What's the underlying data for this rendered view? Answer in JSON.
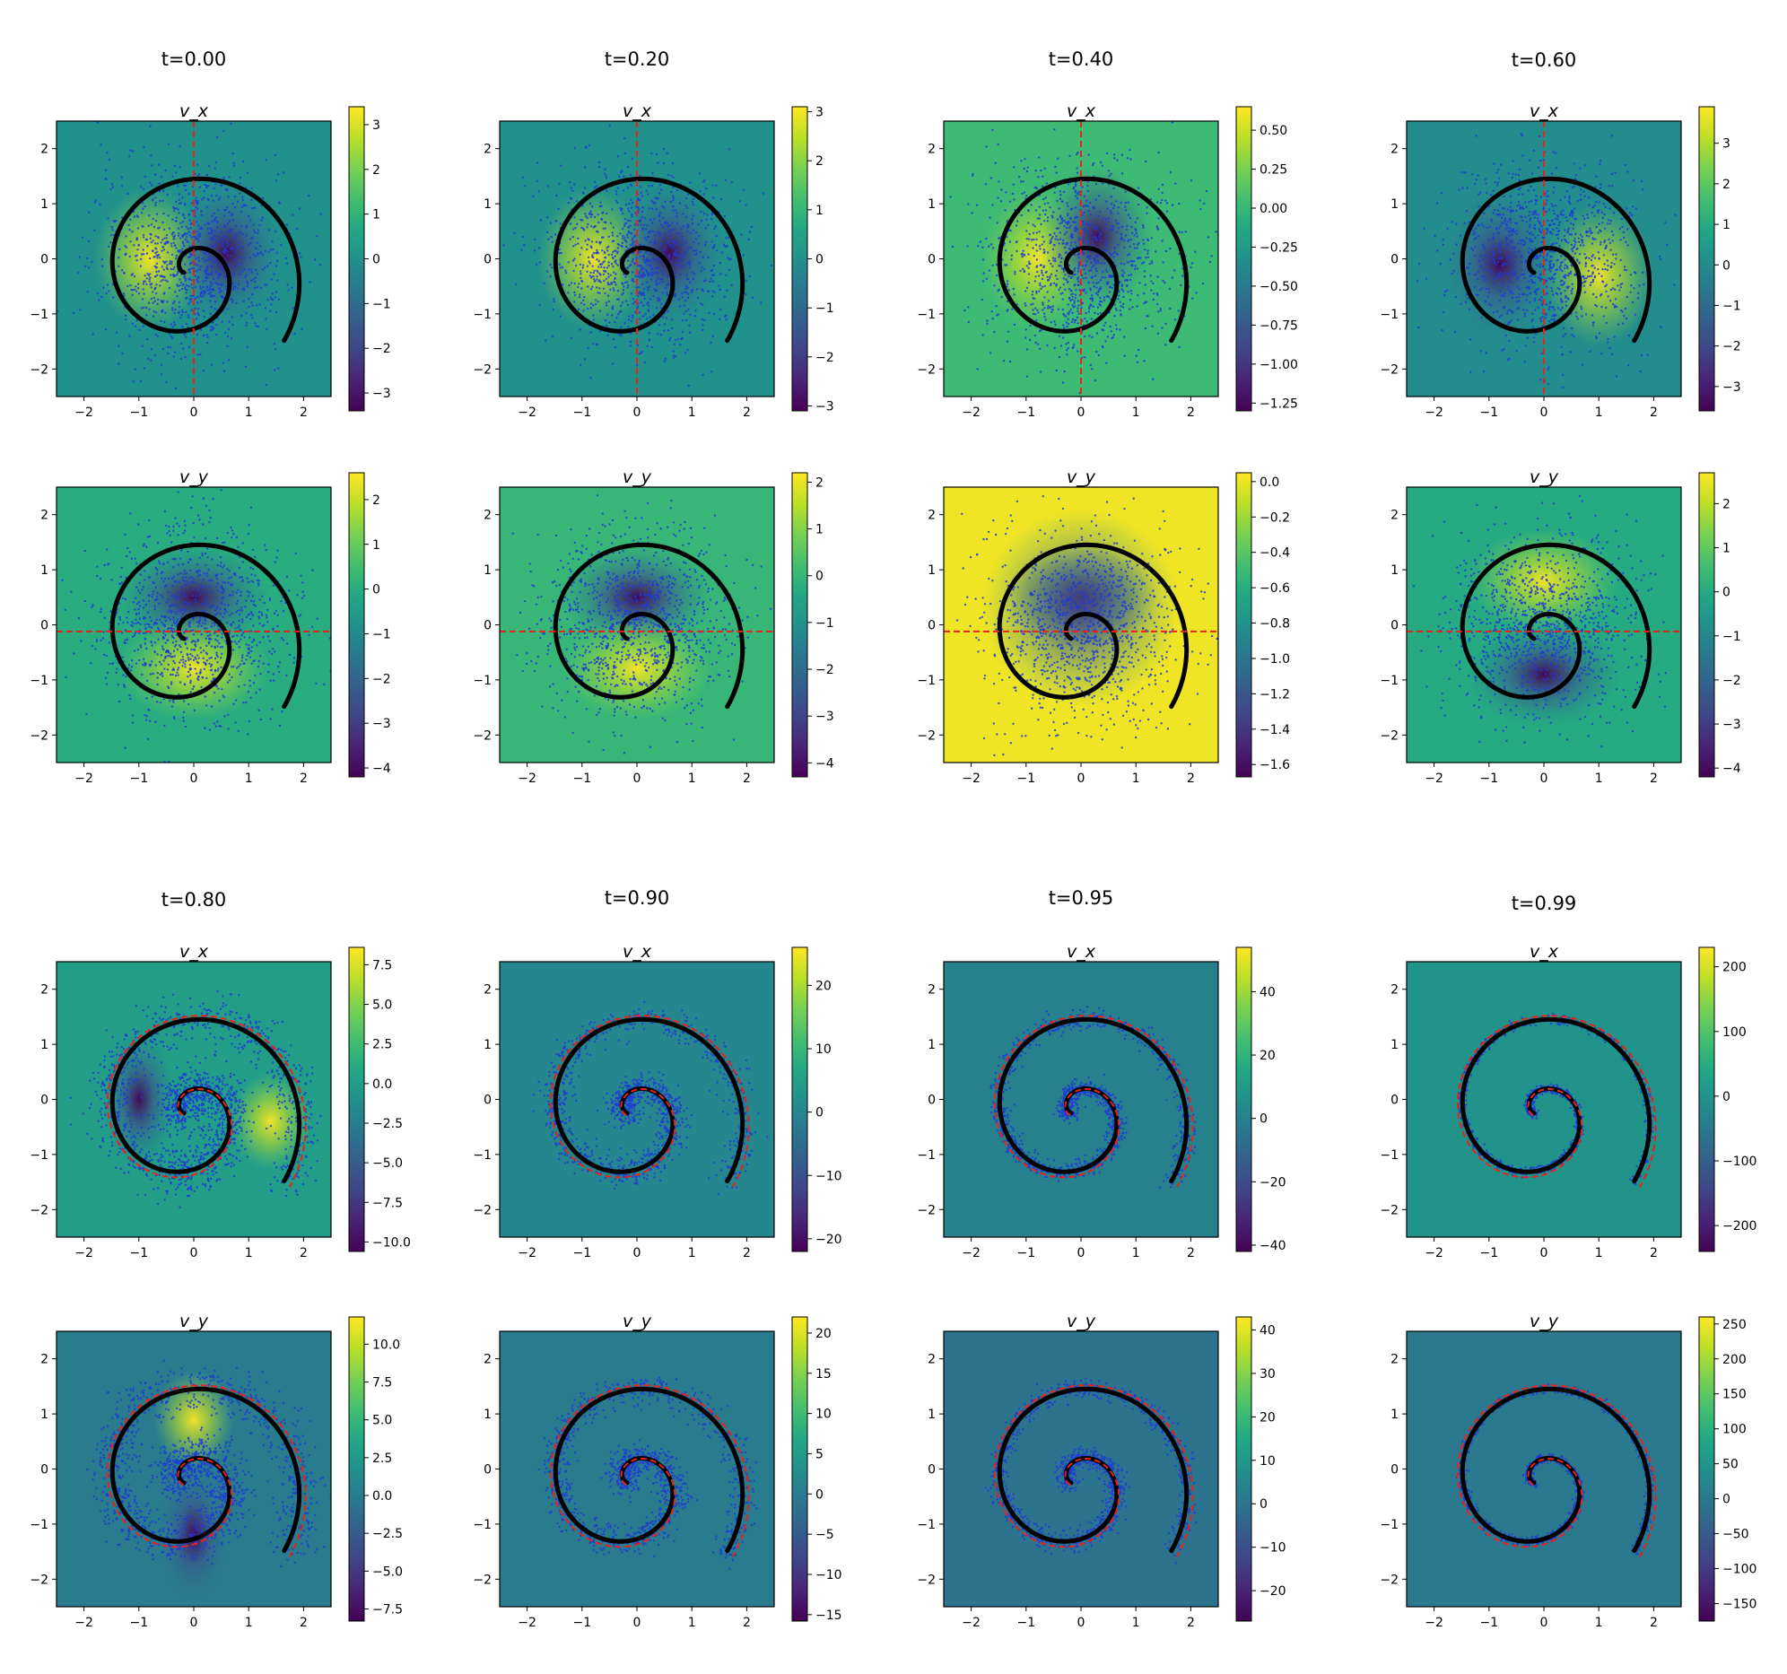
{
  "figure": {
    "x_ticks": [
      "−2",
      "−1",
      "0",
      "1",
      "2"
    ],
    "y_ticks": [
      "2",
      "1",
      "0",
      "−1",
      "−2"
    ]
  },
  "chart_data": [
    {
      "type": "heatmap",
      "time_label": "t=0.00",
      "panels": [
        {
          "title": "v_x",
          "cmin": -3.4,
          "cmax": 3.4,
          "colorbar_ticks": [
            "3",
            "2",
            "1",
            "0",
            "−1",
            "−2",
            "−3"
          ],
          "colorbar_values": [
            3,
            2,
            1,
            0,
            -1,
            -2,
            -3
          ]
        },
        {
          "title": "v_y",
          "cmin": -4.2,
          "cmax": 2.6,
          "colorbar_ticks": [
            "2",
            "1",
            "0",
            "−1",
            "−2",
            "−3",
            "−4"
          ],
          "colorbar_values": [
            2,
            1,
            0,
            -1,
            -2,
            -3,
            -4
          ]
        }
      ]
    },
    {
      "type": "heatmap",
      "time_label": "t=0.20",
      "panels": [
        {
          "title": "v_x",
          "cmin": -3.1,
          "cmax": 3.1,
          "colorbar_ticks": [
            "3",
            "2",
            "1",
            "0",
            "−1",
            "−2",
            "−3"
          ],
          "colorbar_values": [
            3,
            2,
            1,
            0,
            -1,
            -2,
            -3
          ]
        },
        {
          "title": "v_y",
          "cmin": -4.3,
          "cmax": 2.2,
          "colorbar_ticks": [
            "2",
            "1",
            "0",
            "−1",
            "−2",
            "−3",
            "−4"
          ],
          "colorbar_values": [
            2,
            1,
            0,
            -1,
            -2,
            -3,
            -4
          ]
        }
      ]
    },
    {
      "type": "heatmap",
      "time_label": "t=0.40",
      "panels": [
        {
          "title": "v_x",
          "cmin": -1.3,
          "cmax": 0.65,
          "colorbar_ticks": [
            "0.50",
            "0.25",
            "0.00",
            "−0.25",
            "−0.50",
            "−0.75",
            "−1.00",
            "−1.25"
          ],
          "colorbar_values": [
            0.5,
            0.25,
            0,
            -0.25,
            -0.5,
            -0.75,
            -1.0,
            -1.25
          ]
        },
        {
          "title": "v_y",
          "cmin": -1.67,
          "cmax": 0.05,
          "colorbar_ticks": [
            "0.0",
            "−0.2",
            "−0.4",
            "−0.6",
            "−0.8",
            "−1.0",
            "−1.2",
            "−1.4",
            "−1.6"
          ],
          "colorbar_values": [
            0,
            -0.2,
            -0.4,
            -0.6,
            -0.8,
            -1.0,
            -1.2,
            -1.4,
            -1.6
          ]
        }
      ]
    },
    {
      "type": "heatmap",
      "time_label": "t=0.60",
      "panels": [
        {
          "title": "v_x",
          "cmin": -3.6,
          "cmax": 3.9,
          "colorbar_ticks": [
            "3",
            "2",
            "1",
            "0",
            "−1",
            "−2",
            "−3"
          ],
          "colorbar_values": [
            3,
            2,
            1,
            0,
            -1,
            -2,
            -3
          ]
        },
        {
          "title": "v_y",
          "cmin": -4.2,
          "cmax": 2.7,
          "colorbar_ticks": [
            "2",
            "1",
            "0",
            "−1",
            "−2",
            "−3",
            "−4"
          ],
          "colorbar_values": [
            2,
            1,
            0,
            -1,
            -2,
            -3,
            -4
          ]
        }
      ]
    },
    {
      "type": "heatmap",
      "time_label": "t=0.80",
      "panels": [
        {
          "title": "v_x",
          "cmin": -10.6,
          "cmax": 8.6,
          "colorbar_ticks": [
            "7.5",
            "5.0",
            "2.5",
            "0.0",
            "−2.5",
            "−5.0",
            "−7.5",
            "−10.0"
          ],
          "colorbar_values": [
            7.5,
            5,
            2.5,
            0,
            -2.5,
            -5,
            -7.5,
            -10
          ]
        },
        {
          "title": "v_y",
          "cmin": -8.3,
          "cmax": 11.8,
          "colorbar_ticks": [
            "10.0",
            "7.5",
            "5.0",
            "2.5",
            "0.0",
            "−2.5",
            "−5.0",
            "−7.5"
          ],
          "colorbar_values": [
            10,
            7.5,
            5,
            2.5,
            0,
            -2.5,
            -5,
            -7.5
          ]
        }
      ]
    },
    {
      "type": "heatmap",
      "time_label": "t=0.90",
      "panels": [
        {
          "title": "v_x",
          "cmin": -22,
          "cmax": 26,
          "colorbar_ticks": [
            "20",
            "10",
            "0",
            "−10",
            "−20"
          ],
          "colorbar_values": [
            20,
            10,
            0,
            -10,
            -20
          ]
        },
        {
          "title": "v_y",
          "cmin": -15.8,
          "cmax": 22,
          "colorbar_ticks": [
            "20",
            "15",
            "10",
            "5",
            "0",
            "−5",
            "−10",
            "−15"
          ],
          "colorbar_values": [
            20,
            15,
            10,
            5,
            0,
            -5,
            -10,
            -15
          ]
        }
      ]
    },
    {
      "type": "heatmap",
      "time_label": "t=0.95",
      "panels": [
        {
          "title": "v_x",
          "cmin": -42,
          "cmax": 54,
          "colorbar_ticks": [
            "40",
            "20",
            "0",
            "−20",
            "−40"
          ],
          "colorbar_values": [
            40,
            20,
            0,
            -20,
            -40
          ]
        },
        {
          "title": "v_y",
          "cmin": -27,
          "cmax": 43,
          "colorbar_ticks": [
            "40",
            "30",
            "20",
            "10",
            "0",
            "−10",
            "−20"
          ],
          "colorbar_values": [
            40,
            30,
            20,
            10,
            0,
            -10,
            -20
          ]
        }
      ]
    },
    {
      "type": "heatmap",
      "time_label": "t=0.99",
      "panels": [
        {
          "title": "v_x",
          "cmin": -240,
          "cmax": 230,
          "colorbar_ticks": [
            "200",
            "100",
            "0",
            "−100",
            "−200"
          ],
          "colorbar_values": [
            200,
            100,
            0,
            -100,
            -200
          ]
        },
        {
          "title": "v_y",
          "cmin": -175,
          "cmax": 260,
          "colorbar_ticks": [
            "250",
            "200",
            "150",
            "100",
            "50",
            "0",
            "−50",
            "−100",
            "−150"
          ],
          "colorbar_values": [
            250,
            200,
            150,
            100,
            50,
            0,
            -50,
            -100,
            -150
          ]
        }
      ]
    }
  ]
}
